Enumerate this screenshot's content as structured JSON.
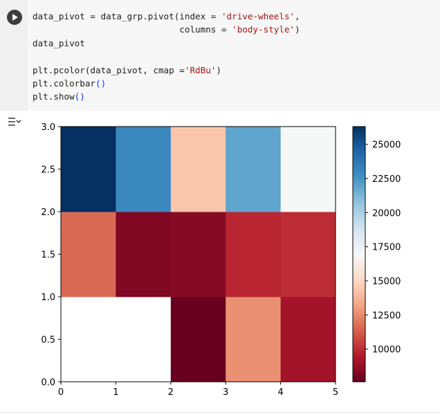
{
  "code_cell": {
    "lines": [
      [
        {
          "t": "data_pivot = data_grp.pivot(index = ",
          "c": "fn"
        },
        {
          "t": "'drive-wheels'",
          "c": "str"
        },
        {
          "t": ",",
          "c": "fn"
        }
      ],
      [
        {
          "t": "                            columns = ",
          "c": "fn"
        },
        {
          "t": "'body-style'",
          "c": "str"
        },
        {
          "t": ")",
          "c": "fn"
        }
      ],
      [
        {
          "t": "data_pivot",
          "c": "fn"
        }
      ],
      [
        {
          "t": "",
          "c": "fn"
        }
      ],
      [
        {
          "t": "plt.pcolor(data_pivot, cmap =",
          "c": "fn"
        },
        {
          "t": "'RdBu'",
          "c": "str"
        },
        {
          "t": ")",
          "c": "fn"
        }
      ],
      [
        {
          "t": "plt.colorbar",
          "c": "fn"
        },
        {
          "t": "()",
          "c": "par"
        }
      ],
      [
        {
          "t": "plt.show",
          "c": "fn"
        },
        {
          "t": "()",
          "c": "par"
        }
      ]
    ]
  },
  "icons": {
    "run": "play-circle-icon",
    "output": "output-settings-icon"
  },
  "chart_data": {
    "type": "heatmap",
    "title": "",
    "xlabel": "",
    "ylabel": "",
    "colormap": "RdBu",
    "xlim": [
      0,
      5
    ],
    "ylim": [
      0,
      3
    ],
    "xticks": [
      "0",
      "1",
      "2",
      "3",
      "4",
      "5"
    ],
    "yticks": [
      "0.0",
      "0.5",
      "1.0",
      "1.5",
      "2.0",
      "2.5",
      "3.0"
    ],
    "rows": [
      [
        null,
        null,
        7603,
        12647,
        9095
      ],
      [
        11595,
        8249,
        8397,
        9811,
        9997
      ],
      [
        26300,
        23000,
        14338,
        21891,
        16995
      ]
    ],
    "vmin": 7603,
    "vmax": 26300,
    "colorbar_ticks": [
      "10000",
      "12500",
      "15000",
      "17500",
      "20000",
      "22500",
      "25000"
    ],
    "colorbar_tick_values": [
      10000,
      12500,
      15000,
      17500,
      20000,
      22500,
      25000
    ],
    "grid": false
  }
}
